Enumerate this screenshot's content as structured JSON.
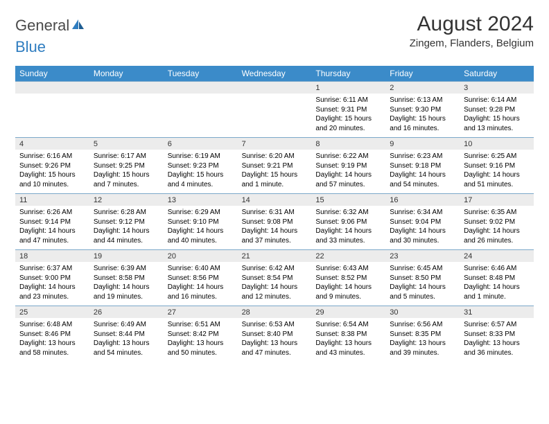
{
  "brand": {
    "word1": "General",
    "word2": "Blue"
  },
  "title": "August 2024",
  "location": "Zingem, Flanders, Belgium",
  "colors": {
    "header_bg": "#3b8bc9",
    "daynum_bg": "#ececec",
    "border": "#7aa7c9",
    "logo_gray": "#4a4a4a",
    "logo_blue": "#2f7dc0"
  },
  "day_labels": [
    "Sunday",
    "Monday",
    "Tuesday",
    "Wednesday",
    "Thursday",
    "Friday",
    "Saturday"
  ],
  "weeks": [
    [
      {
        "num": "",
        "body": ""
      },
      {
        "num": "",
        "body": ""
      },
      {
        "num": "",
        "body": ""
      },
      {
        "num": "",
        "body": ""
      },
      {
        "num": "1",
        "body": "Sunrise: 6:11 AM\nSunset: 9:31 PM\nDaylight: 15 hours and 20 minutes."
      },
      {
        "num": "2",
        "body": "Sunrise: 6:13 AM\nSunset: 9:30 PM\nDaylight: 15 hours and 16 minutes."
      },
      {
        "num": "3",
        "body": "Sunrise: 6:14 AM\nSunset: 9:28 PM\nDaylight: 15 hours and 13 minutes."
      }
    ],
    [
      {
        "num": "4",
        "body": "Sunrise: 6:16 AM\nSunset: 9:26 PM\nDaylight: 15 hours and 10 minutes."
      },
      {
        "num": "5",
        "body": "Sunrise: 6:17 AM\nSunset: 9:25 PM\nDaylight: 15 hours and 7 minutes."
      },
      {
        "num": "6",
        "body": "Sunrise: 6:19 AM\nSunset: 9:23 PM\nDaylight: 15 hours and 4 minutes."
      },
      {
        "num": "7",
        "body": "Sunrise: 6:20 AM\nSunset: 9:21 PM\nDaylight: 15 hours and 1 minute."
      },
      {
        "num": "8",
        "body": "Sunrise: 6:22 AM\nSunset: 9:19 PM\nDaylight: 14 hours and 57 minutes."
      },
      {
        "num": "9",
        "body": "Sunrise: 6:23 AM\nSunset: 9:18 PM\nDaylight: 14 hours and 54 minutes."
      },
      {
        "num": "10",
        "body": "Sunrise: 6:25 AM\nSunset: 9:16 PM\nDaylight: 14 hours and 51 minutes."
      }
    ],
    [
      {
        "num": "11",
        "body": "Sunrise: 6:26 AM\nSunset: 9:14 PM\nDaylight: 14 hours and 47 minutes."
      },
      {
        "num": "12",
        "body": "Sunrise: 6:28 AM\nSunset: 9:12 PM\nDaylight: 14 hours and 44 minutes."
      },
      {
        "num": "13",
        "body": "Sunrise: 6:29 AM\nSunset: 9:10 PM\nDaylight: 14 hours and 40 minutes."
      },
      {
        "num": "14",
        "body": "Sunrise: 6:31 AM\nSunset: 9:08 PM\nDaylight: 14 hours and 37 minutes."
      },
      {
        "num": "15",
        "body": "Sunrise: 6:32 AM\nSunset: 9:06 PM\nDaylight: 14 hours and 33 minutes."
      },
      {
        "num": "16",
        "body": "Sunrise: 6:34 AM\nSunset: 9:04 PM\nDaylight: 14 hours and 30 minutes."
      },
      {
        "num": "17",
        "body": "Sunrise: 6:35 AM\nSunset: 9:02 PM\nDaylight: 14 hours and 26 minutes."
      }
    ],
    [
      {
        "num": "18",
        "body": "Sunrise: 6:37 AM\nSunset: 9:00 PM\nDaylight: 14 hours and 23 minutes."
      },
      {
        "num": "19",
        "body": "Sunrise: 6:39 AM\nSunset: 8:58 PM\nDaylight: 14 hours and 19 minutes."
      },
      {
        "num": "20",
        "body": "Sunrise: 6:40 AM\nSunset: 8:56 PM\nDaylight: 14 hours and 16 minutes."
      },
      {
        "num": "21",
        "body": "Sunrise: 6:42 AM\nSunset: 8:54 PM\nDaylight: 14 hours and 12 minutes."
      },
      {
        "num": "22",
        "body": "Sunrise: 6:43 AM\nSunset: 8:52 PM\nDaylight: 14 hours and 9 minutes."
      },
      {
        "num": "23",
        "body": "Sunrise: 6:45 AM\nSunset: 8:50 PM\nDaylight: 14 hours and 5 minutes."
      },
      {
        "num": "24",
        "body": "Sunrise: 6:46 AM\nSunset: 8:48 PM\nDaylight: 14 hours and 1 minute."
      }
    ],
    [
      {
        "num": "25",
        "body": "Sunrise: 6:48 AM\nSunset: 8:46 PM\nDaylight: 13 hours and 58 minutes."
      },
      {
        "num": "26",
        "body": "Sunrise: 6:49 AM\nSunset: 8:44 PM\nDaylight: 13 hours and 54 minutes."
      },
      {
        "num": "27",
        "body": "Sunrise: 6:51 AM\nSunset: 8:42 PM\nDaylight: 13 hours and 50 minutes."
      },
      {
        "num": "28",
        "body": "Sunrise: 6:53 AM\nSunset: 8:40 PM\nDaylight: 13 hours and 47 minutes."
      },
      {
        "num": "29",
        "body": "Sunrise: 6:54 AM\nSunset: 8:38 PM\nDaylight: 13 hours and 43 minutes."
      },
      {
        "num": "30",
        "body": "Sunrise: 6:56 AM\nSunset: 8:35 PM\nDaylight: 13 hours and 39 minutes."
      },
      {
        "num": "31",
        "body": "Sunrise: 6:57 AM\nSunset: 8:33 PM\nDaylight: 13 hours and 36 minutes."
      }
    ]
  ]
}
